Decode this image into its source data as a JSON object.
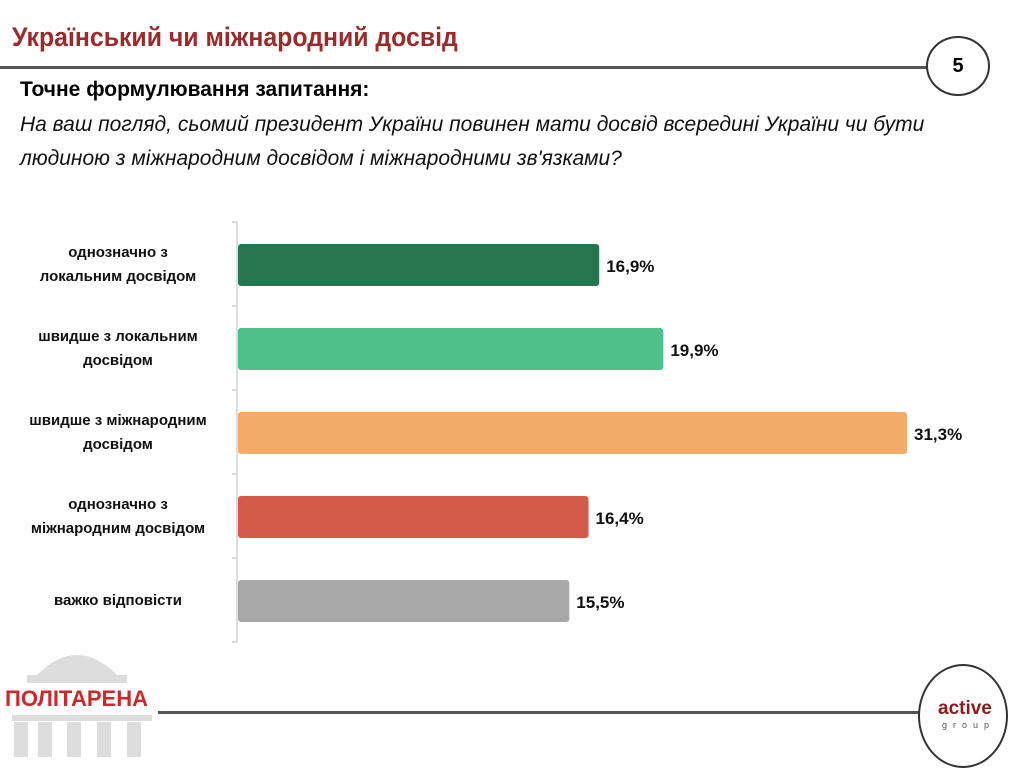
{
  "header": {
    "title": "Український чи міжнародний досвід",
    "page_number": "5"
  },
  "question": {
    "label": "Точне формулювання запитання:",
    "text": "На ваш погляд, сьомий президент України повинен мати досвід всередині України чи бути людиною з міжнародним досвідом і міжнародними зв'язками?"
  },
  "logos": {
    "left": "ПОЛІТАРЕНА",
    "right_main": "active",
    "right_sub": "group"
  },
  "chart_data": {
    "type": "bar",
    "orientation": "horizontal",
    "title": "",
    "xlabel": "",
    "ylabel": "",
    "xlim": [
      0,
      31.3
    ],
    "categories": [
      [
        "однозначно з",
        "локальним досвідом"
      ],
      [
        "швидше з локальним",
        "досвідом"
      ],
      [
        "швидше з міжнародним",
        "досвідом"
      ],
      [
        "однозначно з",
        "міжнародним досвідом"
      ],
      [
        "важко відповісти"
      ]
    ],
    "values": [
      16.9,
      19.9,
      31.3,
      16.4,
      15.5
    ],
    "labels": [
      "16,9%",
      "19,9%",
      "31,3%",
      "16,4%",
      "15,5%"
    ],
    "colors": [
      "#277650",
      "#50c08a",
      "#f2ab68",
      "#d45a4a",
      "#a8a8a8"
    ]
  }
}
